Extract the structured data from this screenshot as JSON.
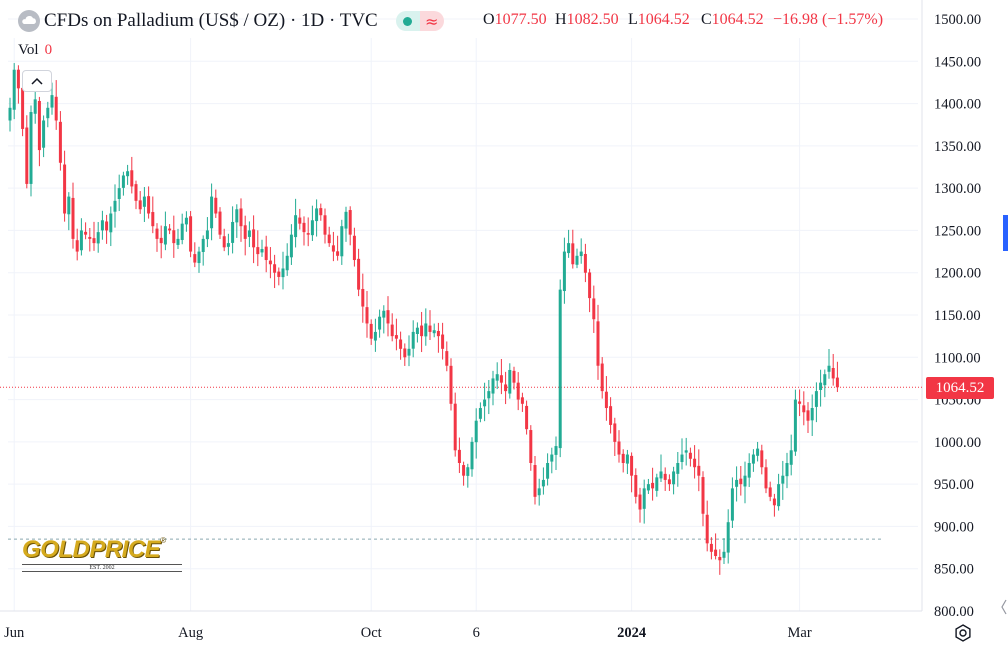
{
  "header": {
    "title": "CFDs on Palladium (US$ / OZ) · 1D · TVC",
    "symbol_icon": "palladium-cloud-icon",
    "status_icon": "market-status-dot-icon",
    "wave_icon": "wave-icon",
    "wave_glyph": "≈",
    "ohlc": {
      "o_label": "O",
      "o_value": "1077.50",
      "h_label": "H",
      "h_value": "1082.50",
      "l_label": "L",
      "l_value": "1064.52",
      "c_label": "C",
      "c_value": "1064.52",
      "change": "−16.98 (−1.57%)"
    },
    "volume_label": "Vol",
    "volume_value": "0"
  },
  "price_badge": "1064.52",
  "logo": {
    "word": "GOLDPRICE",
    "registered": "®",
    "sub": "EST. 2002"
  },
  "colors": {
    "up": "#22ab94",
    "down": "#f23645",
    "grid": "#f0f3fa",
    "text": "#131722",
    "logo_gold": "#d5aa1e"
  },
  "chart_data": {
    "type": "candlestick",
    "title": "CFDs on Palladium (US$ / OZ) · 1D · TVC",
    "y_axis": {
      "side": "right",
      "range": [
        790,
        1520
      ],
      "ticks": [
        "800.00",
        "850.00",
        "900.00",
        "950.00",
        "1000.00",
        "1050.00",
        "1100.00",
        "1150.00",
        "1200.00",
        "1250.00",
        "1300.00",
        "1350.00",
        "1400.00",
        "1450.00",
        "1500.00"
      ]
    },
    "x_axis": {
      "labels": [
        "Jun",
        "Aug",
        "Oct",
        "6",
        "2024",
        "Mar"
      ],
      "bold_labels": [
        "2024"
      ],
      "label_candle_index": [
        1,
        43,
        86,
        111,
        148,
        188
      ]
    },
    "grid": true,
    "last_price": 1064.52,
    "reference_line": 885,
    "close_series": [
      1395,
      1440,
      1418,
      1370,
      1305,
      1390,
      1405,
      1345,
      1380,
      1395,
      1410,
      1380,
      1330,
      1270,
      1290,
      1240,
      1225,
      1250,
      1245,
      1240,
      1235,
      1248,
      1262,
      1250,
      1270,
      1285,
      1300,
      1315,
      1320,
      1302,
      1285,
      1275,
      1290,
      1270,
      1255,
      1240,
      1235,
      1255,
      1250,
      1235,
      1240,
      1258,
      1265,
      1225,
      1212,
      1225,
      1240,
      1250,
      1290,
      1270,
      1245,
      1230,
      1235,
      1260,
      1275,
      1255,
      1240,
      1250,
      1230,
      1222,
      1228,
      1215,
      1210,
      1200,
      1195,
      1205,
      1220,
      1245,
      1268,
      1258,
      1248,
      1245,
      1262,
      1276,
      1268,
      1245,
      1235,
      1225,
      1220,
      1255,
      1272,
      1245,
      1215,
      1180,
      1160,
      1140,
      1122,
      1130,
      1148,
      1155,
      1140,
      1125,
      1122,
      1110,
      1100,
      1110,
      1130,
      1135,
      1125,
      1140,
      1130,
      1132,
      1125,
      1110,
      1090,
      1045,
      990,
      975,
      960,
      970,
      1000,
      1025,
      1040,
      1050,
      1060,
      1075,
      1080,
      1070,
      1060,
      1085,
      1070,
      1050,
      1045,
      1015,
      975,
      935,
      945,
      955,
      975,
      985,
      995,
      1180,
      1225,
      1235,
      1210,
      1220,
      1225,
      1200,
      1170,
      1145,
      1090,
      1060,
      1040,
      1020,
      1000,
      985,
      975,
      985,
      960,
      935,
      920,
      945,
      950,
      945,
      958,
      965,
      955,
      950,
      965,
      975,
      985,
      990,
      980,
      970,
      960,
      915,
      880,
      870,
      865,
      860,
      870,
      905,
      945,
      955,
      950,
      960,
      975,
      985,
      992,
      970,
      945,
      935,
      925,
      950,
      960,
      975,
      990,
      1050,
      1045,
      1035,
      1025,
      1040,
      1060,
      1070,
      1080,
      1090,
      1075,
      1064.52
    ]
  }
}
